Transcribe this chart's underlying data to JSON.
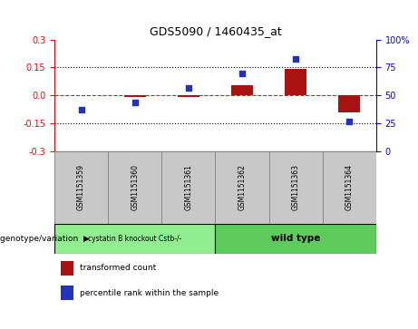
{
  "title": "GDS5090 / 1460435_at",
  "samples": [
    "GSM1151359",
    "GSM1151360",
    "GSM1151361",
    "GSM1151362",
    "GSM1151363",
    "GSM1151364"
  ],
  "transformed_count": [
    0.0,
    -0.008,
    -0.008,
    0.055,
    0.14,
    -0.09
  ],
  "percentile_rank": [
    37,
    44,
    57,
    70,
    83,
    27
  ],
  "ylim_left": [
    -0.3,
    0.3
  ],
  "ylim_right": [
    0,
    100
  ],
  "yticks_left": [
    -0.3,
    -0.15,
    0.0,
    0.15,
    0.3
  ],
  "yticks_right": [
    0,
    25,
    50,
    75,
    100
  ],
  "bar_color": "#aa1111",
  "scatter_color": "#2233bb",
  "hline_color": "#cc2222",
  "group1_label": "cystatin B knockout Cstb-/-",
  "group2_label": "wild type",
  "group1_count": 3,
  "group2_count": 3,
  "group1_bg": "#90ee90",
  "group2_bg": "#5dcc5d",
  "sample_bg": "#c8c8c8",
  "sample_edge": "#888888",
  "legend_label_red": "transformed count",
  "legend_label_blue": "percentile rank within the sample",
  "genotype_label": "genotype/variation"
}
